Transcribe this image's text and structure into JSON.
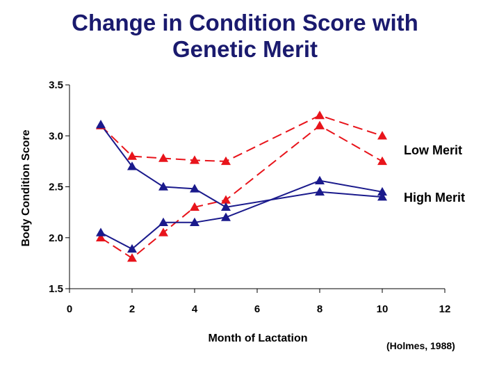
{
  "title_line1": "Change in Condition Score with",
  "title_line2": "Genetic Merit",
  "source": "(Holmes, 1988)",
  "chart_data": {
    "type": "line",
    "xlabel": "Month of Lactation",
    "ylabel": "Body Condition Score",
    "xlim": [
      0,
      12
    ],
    "ylim": [
      1.5,
      3.5
    ],
    "xticks": [
      "0",
      "2",
      "4",
      "6",
      "8",
      "10",
      "12"
    ],
    "yticks": [
      "1.5",
      "2.0",
      "2.5",
      "3.0",
      "3.5"
    ],
    "grid": false,
    "series": [
      {
        "name": "Low Merit",
        "group": "low",
        "color": "#e8141b",
        "dashed": true,
        "marker": "triangle",
        "points": [
          [
            1,
            3.1
          ],
          [
            2,
            2.8
          ],
          [
            3,
            2.78
          ],
          [
            4,
            2.76
          ],
          [
            5,
            2.75
          ],
          [
            8,
            3.2
          ],
          [
            10,
            3.0
          ]
        ]
      },
      {
        "name": "Low Merit",
        "group": "low",
        "color": "#e8141b",
        "dashed": true,
        "marker": "triangle",
        "points": [
          [
            1,
            2.0
          ],
          [
            2,
            1.8
          ],
          [
            3,
            2.05
          ],
          [
            4,
            2.3
          ],
          [
            5,
            2.37
          ],
          [
            8,
            3.1
          ],
          [
            10,
            2.75
          ]
        ]
      },
      {
        "name": "High Merit",
        "group": "high",
        "color": "#1a1a8c",
        "dashed": false,
        "marker": "triangle",
        "points": [
          [
            1,
            3.11
          ],
          [
            2,
            2.7
          ],
          [
            3,
            2.5
          ],
          [
            4,
            2.48
          ],
          [
            5,
            2.3
          ],
          [
            8,
            2.45
          ],
          [
            10,
            2.4
          ]
        ]
      },
      {
        "name": "High Merit",
        "group": "high",
        "color": "#1a1a8c",
        "dashed": false,
        "marker": "triangle",
        "points": [
          [
            1,
            2.05
          ],
          [
            2,
            1.89
          ],
          [
            3,
            2.15
          ],
          [
            4,
            2.15
          ],
          [
            5,
            2.2
          ],
          [
            8,
            2.56
          ],
          [
            10,
            2.45
          ]
        ]
      }
    ],
    "annotations": [
      "Low Merit",
      "High Merit"
    ]
  }
}
